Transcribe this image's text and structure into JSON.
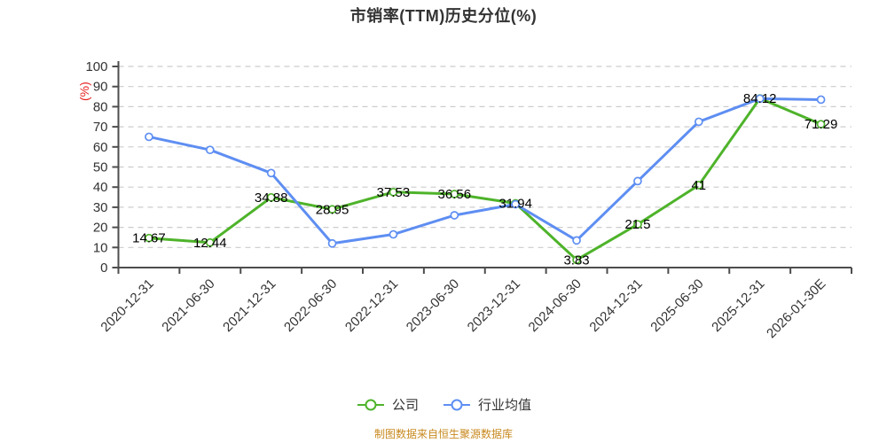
{
  "chart_data": {
    "type": "line",
    "title": "市销率(TTM)历史分位(%)",
    "y_unit": "(%)",
    "ylim": [
      0,
      100
    ],
    "y_ticks": [
      0,
      10,
      20,
      30,
      40,
      50,
      60,
      70,
      80,
      90,
      100
    ],
    "grid": true,
    "legend_position": "bottom",
    "categories": [
      "2020-12-31",
      "2021-06-30",
      "2021-12-31",
      "2022-06-30",
      "2022-12-31",
      "2023-06-30",
      "2023-12-31",
      "2024-06-30",
      "2024-12-31",
      "2025-06-30",
      "2025-12-31",
      "2026-01-30E"
    ],
    "series": [
      {
        "name": "公司",
        "color": "#4eb32a",
        "values": [
          14.67,
          12.44,
          34.88,
          28.95,
          37.53,
          36.56,
          31.94,
          3.83,
          21.5,
          41,
          84.12,
          71.29
        ],
        "labels": [
          "14.67",
          "12.44",
          "34.88",
          "28.95",
          "37.53",
          "36.56",
          "31.94",
          "3.83",
          "21.5",
          "41",
          "84.12",
          "71.29"
        ],
        "show_labels": true
      },
      {
        "name": "行业均值",
        "color": "#5e8ef2",
        "values": [
          65,
          58.5,
          47,
          12,
          16.5,
          26,
          31.5,
          13.5,
          43,
          72.5,
          84,
          83.5
        ],
        "labels": [],
        "show_labels": false
      }
    ]
  },
  "footer": {
    "text": "制图数据来自恒生聚源数据库",
    "color": "#c8891f"
  },
  "colors": {
    "axis": "#4d4d4d",
    "grid": "#cccccc",
    "tick_label": "#333333",
    "data_label": "#000000",
    "y_unit": "#e62222",
    "title": "#333333"
  }
}
